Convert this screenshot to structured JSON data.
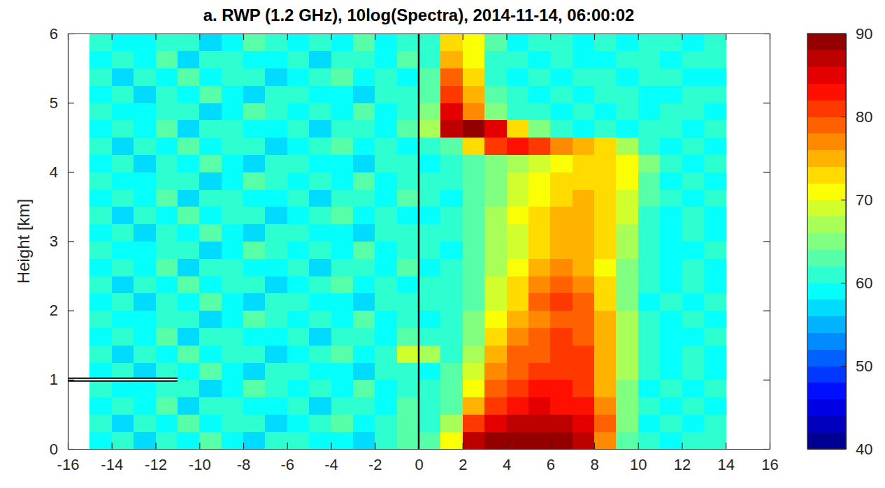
{
  "chart_data": {
    "type": "heatmap",
    "title": "a. RWP (1.2 GHz), 10log(Spectra), 2014-11-14, 06:00:02",
    "ylabel": "Height [km]",
    "xlim": [
      -16,
      16
    ],
    "ylim": [
      0,
      6
    ],
    "xticks": [
      -16,
      -14,
      -12,
      -10,
      -8,
      -6,
      -4,
      -2,
      0,
      2,
      4,
      6,
      8,
      10,
      12,
      14,
      16
    ],
    "yticks": [
      0,
      1,
      2,
      3,
      4,
      5,
      6
    ],
    "x_edges": [
      -15,
      -14,
      -13,
      -12,
      -11,
      -10,
      -9,
      -8,
      -7,
      -6,
      -5,
      -4,
      -3,
      -2,
      -1,
      0,
      1,
      2,
      3,
      4,
      5,
      6,
      7,
      8,
      9,
      10,
      11,
      12,
      13,
      14
    ],
    "y_edges": [
      0,
      0.25,
      0.5,
      0.75,
      1,
      1.25,
      1.5,
      1.75,
      2,
      2.25,
      2.5,
      2.75,
      3,
      3.25,
      3.5,
      3.75,
      4,
      4.25,
      4.5,
      4.75,
      5,
      5.25,
      5.5,
      5.75,
      6
    ],
    "cells": [
      [
        59,
        61,
        57,
        60,
        58,
        62,
        59,
        56,
        60,
        61,
        58,
        59,
        57,
        60,
        63,
        62,
        70,
        86,
        88,
        88,
        89,
        88,
        86,
        76,
        63,
        60,
        59,
        61,
        60
      ],
      [
        60,
        57,
        61,
        59,
        62,
        58,
        60,
        61,
        57,
        59,
        60,
        62,
        58,
        61,
        62,
        61,
        66,
        80,
        84,
        86,
        87,
        86,
        84,
        78,
        64,
        59,
        61,
        58,
        60
      ],
      [
        58,
        60,
        59,
        62,
        57,
        60,
        61,
        59,
        58,
        60,
        57,
        61,
        60,
        59,
        62,
        60,
        63,
        74,
        80,
        82,
        84,
        83,
        82,
        76,
        65,
        60,
        58,
        61,
        59
      ],
      [
        61,
        59,
        58,
        60,
        61,
        57,
        59,
        62,
        60,
        58,
        61,
        59,
        62,
        58,
        60,
        61,
        62,
        70,
        78,
        80,
        82,
        82,
        80,
        74,
        64,
        59,
        60,
        58,
        61
      ],
      [
        59,
        61,
        57,
        60,
        58,
        62,
        59,
        56,
        60,
        61,
        58,
        59,
        57,
        60,
        61,
        59,
        62,
        68,
        76,
        78,
        80,
        81,
        80,
        74,
        66,
        60,
        59,
        61,
        58
      ],
      [
        60,
        57,
        61,
        59,
        62,
        58,
        60,
        61,
        57,
        59,
        60,
        62,
        58,
        61,
        68,
        66,
        61,
        66,
        74,
        78,
        79,
        80,
        80,
        75,
        67,
        61,
        58,
        60,
        59
      ],
      [
        58,
        60,
        59,
        62,
        57,
        60,
        61,
        59,
        58,
        60,
        57,
        61,
        60,
        59,
        62,
        60,
        61,
        65,
        72,
        76,
        78,
        80,
        79,
        75,
        67,
        60,
        59,
        58,
        61
      ],
      [
        61,
        59,
        58,
        60,
        61,
        57,
        59,
        62,
        60,
        58,
        61,
        59,
        62,
        58,
        60,
        59,
        60,
        64,
        71,
        75,
        77,
        79,
        78,
        74,
        66,
        61,
        58,
        60,
        59
      ],
      [
        59,
        61,
        57,
        60,
        58,
        62,
        59,
        56,
        60,
        61,
        58,
        59,
        57,
        60,
        61,
        61,
        60,
        63,
        69,
        73,
        78,
        80,
        78,
        73,
        65,
        59,
        61,
        58,
        60
      ],
      [
        60,
        57,
        61,
        59,
        62,
        58,
        60,
        61,
        57,
        59,
        60,
        62,
        58,
        61,
        59,
        60,
        61,
        63,
        68,
        72,
        77,
        79,
        77,
        72,
        65,
        60,
        59,
        61,
        58
      ],
      [
        58,
        60,
        59,
        62,
        57,
        60,
        61,
        59,
        58,
        60,
        57,
        61,
        60,
        59,
        62,
        59,
        60,
        62,
        67,
        70,
        74,
        76,
        75,
        71,
        65,
        61,
        58,
        60,
        59
      ],
      [
        61,
        59,
        58,
        60,
        61,
        57,
        59,
        62,
        60,
        58,
        61,
        59,
        62,
        58,
        60,
        61,
        59,
        62,
        66,
        69,
        72,
        75,
        75,
        72,
        66,
        60,
        59,
        58,
        61
      ],
      [
        59,
        61,
        57,
        60,
        58,
        62,
        59,
        56,
        60,
        61,
        58,
        59,
        57,
        60,
        61,
        60,
        61,
        62,
        66,
        69,
        72,
        74,
        75,
        72,
        67,
        60,
        58,
        61,
        59
      ],
      [
        60,
        57,
        61,
        59,
        62,
        58,
        60,
        61,
        57,
        59,
        60,
        62,
        58,
        61,
        59,
        59,
        60,
        63,
        66,
        70,
        72,
        74,
        74,
        73,
        68,
        61,
        59,
        60,
        58
      ],
      [
        58,
        60,
        59,
        62,
        57,
        60,
        61,
        59,
        58,
        60,
        57,
        61,
        60,
        59,
        62,
        61,
        59,
        62,
        65,
        69,
        71,
        72,
        74,
        73,
        69,
        62,
        60,
        58,
        61
      ],
      [
        61,
        59,
        58,
        60,
        61,
        57,
        59,
        62,
        60,
        58,
        61,
        59,
        62,
        58,
        60,
        60,
        61,
        62,
        65,
        68,
        70,
        72,
        73,
        73,
        70,
        63,
        59,
        61,
        59
      ],
      [
        59,
        61,
        57,
        60,
        58,
        62,
        59,
        56,
        60,
        61,
        58,
        59,
        57,
        60,
        61,
        59,
        60,
        62,
        64,
        67,
        69,
        70,
        72,
        72,
        71,
        64,
        60,
        58,
        60
      ],
      [
        60,
        57,
        61,
        59,
        62,
        58,
        60,
        61,
        57,
        59,
        60,
        62,
        58,
        61,
        59,
        60,
        62,
        72,
        80,
        82,
        80,
        76,
        74,
        72,
        66,
        60,
        59,
        61,
        58
      ],
      [
        58,
        60,
        59,
        62,
        57,
        60,
        61,
        59,
        58,
        60,
        57,
        61,
        60,
        59,
        62,
        66,
        86,
        90,
        84,
        72,
        64,
        61,
        59,
        60,
        58,
        61,
        60,
        59,
        61
      ],
      [
        61,
        59,
        58,
        60,
        61,
        57,
        59,
        62,
        60,
        58,
        61,
        59,
        62,
        58,
        60,
        64,
        84,
        76,
        64,
        61,
        60,
        58,
        61,
        59,
        60,
        58,
        61,
        60,
        59
      ],
      [
        59,
        61,
        57,
        60,
        58,
        62,
        59,
        56,
        60,
        61,
        58,
        59,
        57,
        60,
        61,
        63,
        80,
        74,
        62,
        60,
        59,
        61,
        58,
        60,
        61,
        59,
        58,
        61,
        60
      ],
      [
        60,
        57,
        61,
        59,
        62,
        58,
        60,
        61,
        57,
        59,
        60,
        62,
        58,
        61,
        59,
        62,
        78,
        72,
        61,
        59,
        60,
        58,
        60,
        61,
        59,
        60,
        61,
        58,
        59
      ],
      [
        58,
        60,
        59,
        62,
        57,
        60,
        61,
        59,
        58,
        60,
        57,
        61,
        60,
        59,
        62,
        61,
        74,
        70,
        60,
        61,
        58,
        60,
        59,
        58,
        61,
        60,
        59,
        61,
        60
      ],
      [
        61,
        59,
        58,
        60,
        61,
        57,
        59,
        62,
        60,
        58,
        61,
        59,
        62,
        58,
        60,
        60,
        72,
        70,
        62,
        59,
        60,
        61,
        58,
        60,
        59,
        61,
        60,
        58,
        61
      ]
    ],
    "colorbar": {
      "range": [
        40,
        90
      ],
      "ticks": [
        40,
        50,
        60,
        70,
        80,
        90
      ]
    },
    "vlines": [
      0
    ],
    "hlines": [
      {
        "y": 1,
        "x": [
          -16,
          -11
        ]
      }
    ]
  }
}
